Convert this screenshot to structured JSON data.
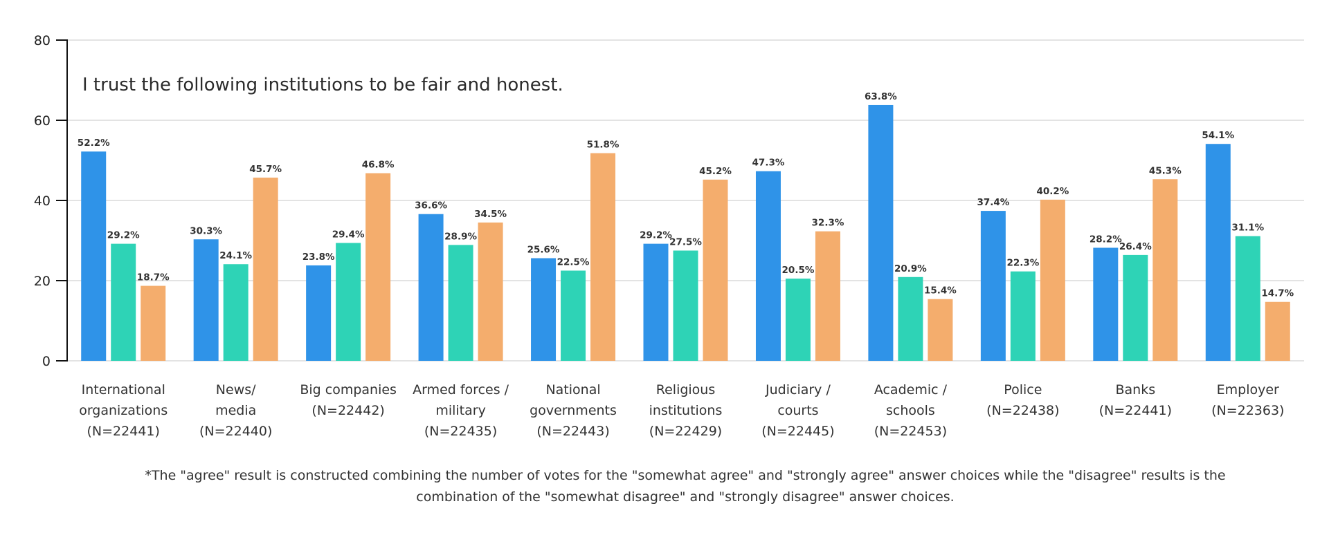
{
  "chart_data": {
    "type": "bar",
    "title": "I trust the following institutions to be fair and honest.",
    "xlabel": "",
    "ylabel": "",
    "ylim": [
      0,
      80
    ],
    "yticks": [
      0,
      20,
      40,
      60,
      80
    ],
    "grid": true,
    "legend": "none",
    "categories": [
      [
        "International",
        "organizations",
        "(N=22441)"
      ],
      [
        "News/",
        "media",
        "(N=22440)"
      ],
      [
        "Big companies",
        "(N=22442)"
      ],
      [
        "Armed forces /",
        "military",
        "(N=22435)"
      ],
      [
        "National",
        "governments",
        "(N=22443)"
      ],
      [
        "Religious",
        "institutions",
        "(N=22429)"
      ],
      [
        "Judiciary /",
        "courts",
        "(N=22445)"
      ],
      [
        "Academic /",
        "schools",
        "(N=22453)"
      ],
      [
        "Police",
        "(N=22438)"
      ],
      [
        "Banks",
        "(N=22441)"
      ],
      [
        "Employer",
        "(N=22363)"
      ]
    ],
    "series": [
      {
        "name": "series-1",
        "color": "#2f93e8",
        "values": [
          52.2,
          30.3,
          23.8,
          36.6,
          25.6,
          29.2,
          47.3,
          63.8,
          37.4,
          28.2,
          54.1
        ]
      },
      {
        "name": "series-2",
        "color": "#2ed3b6",
        "values": [
          29.2,
          24.1,
          29.4,
          28.9,
          22.5,
          27.5,
          20.5,
          20.9,
          22.3,
          26.4,
          31.1
        ]
      },
      {
        "name": "series-3",
        "color": "#f4ad6d",
        "values": [
          18.7,
          45.7,
          46.8,
          34.5,
          51.8,
          45.2,
          32.3,
          15.4,
          40.2,
          45.3,
          14.7
        ]
      }
    ],
    "value_suffix": "%",
    "footnote": [
      "*The \"agree\" result is constructed combining the number of votes for the \"somewhat agree\" and \"strongly agree\" answer choices while the \"disagree\" results is the",
      "combination of the \"somewhat disagree\" and \"strongly disagree\" answer choices."
    ]
  }
}
